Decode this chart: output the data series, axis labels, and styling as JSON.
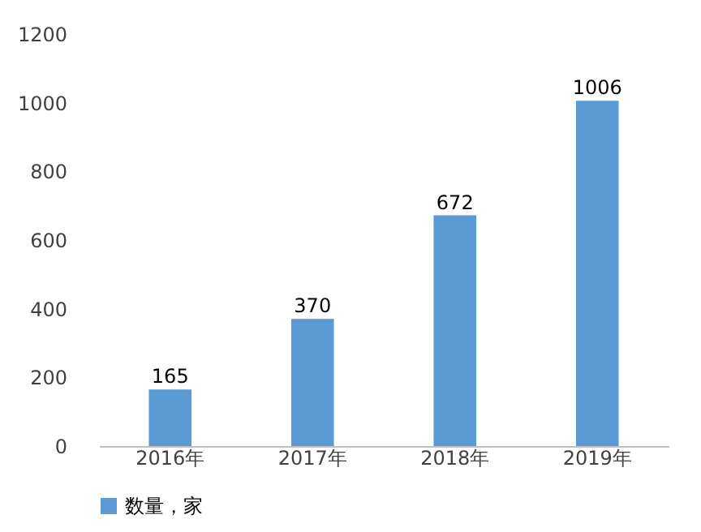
{
  "chart_data": {
    "type": "bar",
    "categories": [
      "2016年",
      "2017年",
      "2018年",
      "2019年"
    ],
    "series": [
      {
        "name": "数量，家",
        "color": "#5b9bd5",
        "values": [
          165,
          370,
          672,
          1006
        ]
      }
    ],
    "ylim": [
      0,
      1200
    ],
    "yticks": [
      0,
      200,
      400,
      600,
      800,
      1000,
      1200
    ],
    "grid": false,
    "legend": "bottom",
    "data_labels": true
  }
}
